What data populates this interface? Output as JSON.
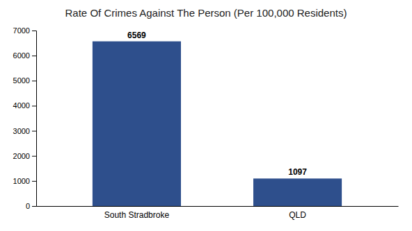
{
  "chart_data": {
    "type": "bar",
    "title": "Rate Of Crimes Against The Person (Per 100,000 Residents)",
    "categories": [
      "South Stradbroke",
      "QLD"
    ],
    "values": [
      6569,
      1097
    ],
    "color": "#2e4f8c",
    "ylim": [
      0,
      7000
    ],
    "yticks": [
      0,
      1000,
      2000,
      3000,
      4000,
      5000,
      6000,
      7000
    ],
    "grid": false,
    "data_labels": true
  }
}
